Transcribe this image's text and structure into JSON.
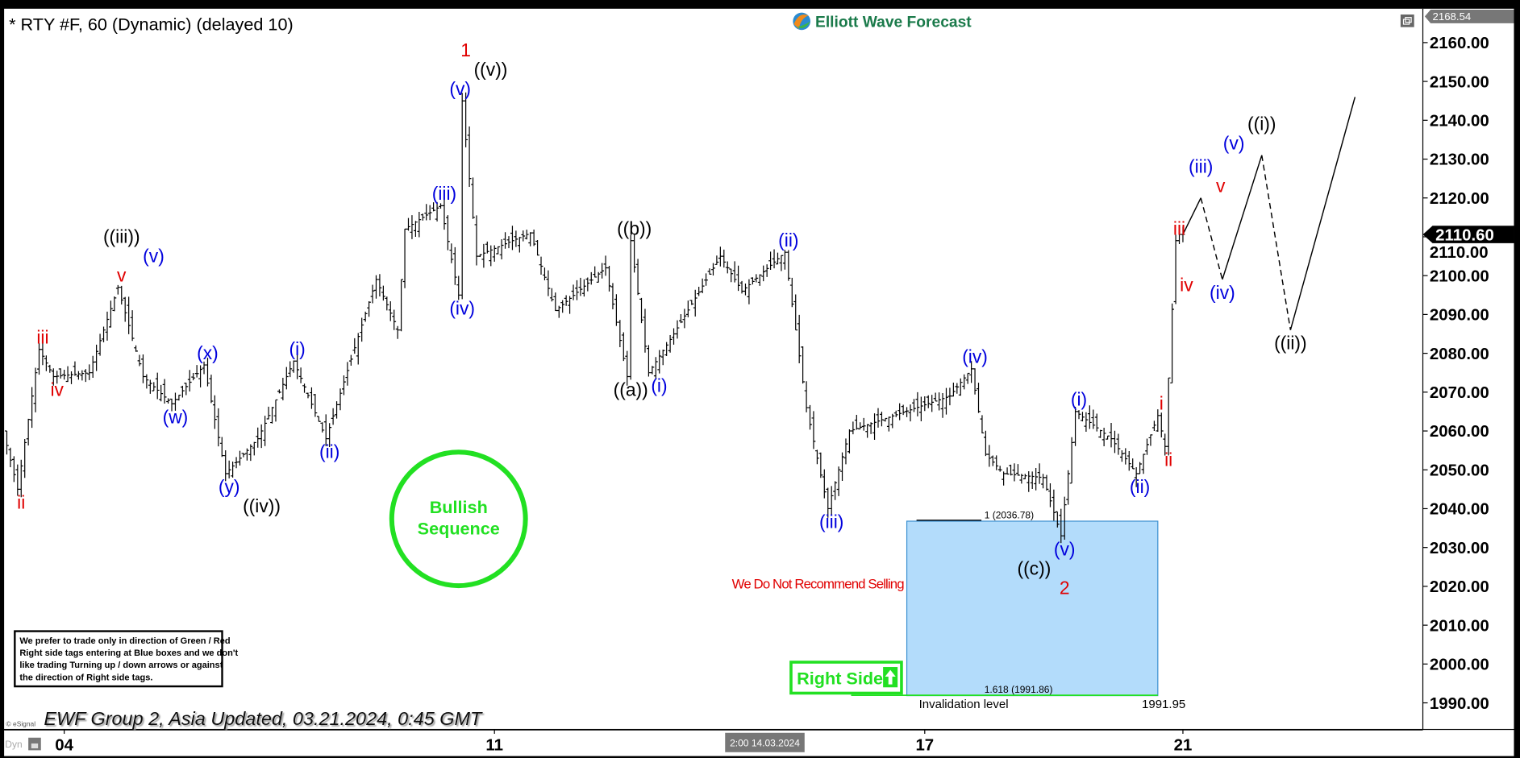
{
  "header": {
    "symbol_title": "* RTY #F, 60 (Dynamic) (delayed 10)",
    "logo_text": "Elliott Wave Forecast"
  },
  "footer": {
    "updated_text": "EWF Group 2, Asia Updated, 03.21.2024, 0:45 GMT",
    "copyright": "© eSignal",
    "dyn_label": "Dyn",
    "cursor_time": "2:00 14.03.2024"
  },
  "notice": {
    "lines": [
      "We prefer to trade only in direction of Green / Red",
      "Right side tags entering at Blue boxes and we don't",
      "like trading Turning up / down arrows or against",
      "the direction of Right side tags."
    ]
  },
  "annotations": {
    "bullish_line1": "Bullish",
    "bullish_line2": "Sequence",
    "no_selling": "We Do Not Recommend Selling",
    "right_side": "Right Side",
    "fib_1": "1 (2036.78)",
    "fib_1618": "1.618 (1991.86)",
    "invalidation_label": "Invalidation level",
    "invalidation_value": "1991.95"
  },
  "colors": {
    "red": "#e00000",
    "blue": "#0000dd",
    "black": "#000000",
    "green": "#22e022",
    "box_fill": "#b3dcfb",
    "box_stroke": "#3a8fd0"
  },
  "chart_data": {
    "type": "ohlc-bar",
    "interval": "60 min",
    "ylim": [
      1985,
      2168.54
    ],
    "yticks": [
      1990,
      2000,
      2010,
      2020,
      2030,
      2040,
      2050,
      2060,
      2070,
      2080,
      2090,
      2100,
      2110,
      2120,
      2130,
      2140,
      2150,
      2160
    ],
    "ytick_labels": [
      "1990.00",
      "2000.00",
      "2010.00",
      "2020.00",
      "2030.00",
      "2040.00",
      "2050.00",
      "2060.00",
      "2070.00",
      "2080.00",
      "2090.00",
      "2100.00",
      "2110.00",
      "2120.00",
      "2130.00",
      "2140.00",
      "2150.00",
      "2160.00"
    ],
    "axis_top_label": "2168.54",
    "last_price": 2110.6,
    "last_price_label": "2110.60",
    "xticks": [
      {
        "date": "03-04 00:00",
        "label": "04"
      },
      {
        "date": "03-11 00:00",
        "label": "11"
      },
      {
        "date": "03-17 00:00",
        "label": "17"
      },
      {
        "date": "03-21 00:00",
        "label": "21"
      }
    ],
    "price_path": [
      [
        "03-01 08:00",
        2060
      ],
      [
        "03-01 12:00",
        2045
      ],
      [
        "03-01 18:00",
        2081
      ],
      [
        "03-01 22:00",
        2074
      ],
      [
        "03-04 08:00",
        2075
      ],
      [
        "03-04 16:00",
        2097
      ],
      [
        "03-04 23:00",
        2074
      ],
      [
        "03-05 07:00",
        2067
      ],
      [
        "03-05 16:00",
        2077
      ],
      [
        "03-05 22:00",
        2049
      ],
      [
        "03-06 07:00",
        2058
      ],
      [
        "03-06 17:00",
        2078
      ],
      [
        "03-07 02:00",
        2058
      ],
      [
        "03-07 16:00",
        2099
      ],
      [
        "03-07 22:00",
        2086
      ],
      [
        "03-08 00:00",
        2112
      ],
      [
        "03-08 10:00",
        2118
      ],
      [
        "03-08 15:00",
        2095
      ],
      [
        "03-08 16:00",
        2145
      ],
      [
        "03-08 20:00",
        2105
      ],
      [
        "03-11 11:00",
        2111
      ],
      [
        "03-11 18:00",
        2091
      ],
      [
        "03-12 08:00",
        2102
      ],
      [
        "03-12 14:00",
        2074
      ],
      [
        "03-12 15:00",
        2109
      ],
      [
        "03-12 20:00",
        2075
      ],
      [
        "03-13 03:00",
        2085
      ],
      [
        "03-13 16:00",
        2105
      ],
      [
        "03-13 22:00",
        2096
      ],
      [
        "03-14 10:00",
        2106
      ],
      [
        "03-14 16:00",
        2066
      ],
      [
        "03-14 22:00",
        2040
      ],
      [
        "03-15 04:00",
        2060
      ],
      [
        "03-18 08:00",
        2069
      ],
      [
        "03-18 14:00",
        2076
      ],
      [
        "03-18 18:00",
        2054
      ],
      [
        "03-18 23:00",
        2049
      ],
      [
        "03-19 10:00",
        2048
      ],
      [
        "03-19 15:00",
        2033
      ],
      [
        "03-19 19:00",
        2065
      ],
      [
        "03-20 05:00",
        2058
      ],
      [
        "03-20 12:00",
        2049
      ],
      [
        "03-20 18:00",
        2064
      ],
      [
        "03-20 20:00",
        2056
      ],
      [
        "03-20 23:00",
        2109
      ],
      [
        "03-21 00:00",
        2110.6
      ]
    ],
    "projection": [
      {
        "from": [
          "03-21 00:00",
          2110.6
        ],
        "to": [
          "03-21 05:00",
          2120
        ],
        "style": "solid"
      },
      {
        "from": [
          "03-21 05:00",
          2120
        ],
        "to": [
          "03-21 11:00",
          2099
        ],
        "style": "dashed"
      },
      {
        "from": [
          "03-21 11:00",
          2099
        ],
        "to": [
          "03-21 22:00",
          2131
        ],
        "style": "solid"
      },
      {
        "from": [
          "03-21 22:00",
          2131
        ],
        "to": [
          "03-22 06:00",
          2086
        ],
        "style": "dashed"
      },
      {
        "from": [
          "03-22 06:00",
          2086
        ],
        "to": [
          "03-25 00:00",
          2146
        ],
        "style": "solid"
      }
    ],
    "blue_box": {
      "from": "03-15 19:00",
      "to": "03-20 17:00",
      "top": 2036.78,
      "bottom": 1991.86
    },
    "invalidation_level": 1991.95,
    "wave_labels": [
      {
        "at": "03-01 12:00",
        "price": 2045,
        "pos": "below",
        "lines": [
          [
            "ii",
            "red"
          ]
        ]
      },
      {
        "at": "03-01 18:00",
        "price": 2081,
        "pos": "above",
        "lines": [
          [
            "iii",
            "red"
          ]
        ]
      },
      {
        "at": "03-01 22:00",
        "price": 2074,
        "pos": "below",
        "lines": [
          [
            "iv",
            "red"
          ]
        ]
      },
      {
        "at": "03-04 16:00",
        "price": 2097,
        "pos": "above",
        "lines": [
          [
            "((iii))",
            "black"
          ],
          [
            "(v)",
            "blue"
          ],
          [
            "v",
            "red"
          ]
        ]
      },
      {
        "at": "03-05 07:00",
        "price": 2067,
        "pos": "below",
        "lines": [
          [
            "(w)",
            "blue"
          ]
        ]
      },
      {
        "at": "03-05 16:00",
        "price": 2077,
        "pos": "above",
        "lines": [
          [
            "(x)",
            "blue"
          ]
        ]
      },
      {
        "at": "03-05 22:00",
        "price": 2049,
        "pos": "below",
        "lines": [
          [
            "(y)",
            "blue"
          ],
          [
            "((iv))",
            "black"
          ]
        ]
      },
      {
        "at": "03-06 17:00",
        "price": 2078,
        "pos": "above",
        "lines": [
          [
            "(i)",
            "blue"
          ]
        ]
      },
      {
        "at": "03-07 02:00",
        "price": 2058,
        "pos": "below",
        "lines": [
          [
            "(ii)",
            "blue"
          ]
        ]
      },
      {
        "at": "03-08 10:00",
        "price": 2118,
        "pos": "above",
        "lines": [
          [
            "(iii)",
            "blue"
          ]
        ]
      },
      {
        "at": "03-08 15:00",
        "price": 2095,
        "pos": "below",
        "lines": [
          [
            "(iv)",
            "blue"
          ]
        ]
      },
      {
        "at": "03-08 16:00",
        "price": 2145,
        "pos": "above",
        "lines": [
          [
            "1",
            "red"
          ],
          [
            "((v))",
            "black"
          ],
          [
            "(v)",
            "blue"
          ]
        ]
      },
      {
        "at": "03-12 14:00",
        "price": 2074,
        "pos": "below",
        "lines": [
          [
            "((a))",
            "black"
          ]
        ]
      },
      {
        "at": "03-12 15:00",
        "price": 2109,
        "pos": "above",
        "lines": [
          [
            "((b))",
            "black"
          ]
        ]
      },
      {
        "at": "03-12 20:00",
        "price": 2075,
        "pos": "below",
        "lines": [
          [
            "(i)",
            "blue"
          ]
        ]
      },
      {
        "at": "03-14 10:00",
        "price": 2106,
        "pos": "above",
        "lines": [
          [
            "(ii)",
            "blue"
          ]
        ]
      },
      {
        "at": "03-14 22:00",
        "price": 2040,
        "pos": "below",
        "lines": [
          [
            "(iii)",
            "blue"
          ]
        ]
      },
      {
        "at": "03-18 14:00",
        "price": 2076,
        "pos": "above",
        "lines": [
          [
            "(iv)",
            "blue"
          ]
        ]
      },
      {
        "at": "03-19 15:00",
        "price": 2033,
        "pos": "below",
        "lines": [
          [
            "(v)",
            "blue"
          ],
          [
            "((c))",
            "black"
          ],
          [
            "2",
            "red"
          ]
        ]
      },
      {
        "at": "03-19 19:00",
        "price": 2065,
        "pos": "above",
        "lines": [
          [
            "(i)",
            "blue"
          ]
        ]
      },
      {
        "at": "03-20 12:00",
        "price": 2049,
        "pos": "below",
        "lines": [
          [
            "(ii)",
            "blue"
          ]
        ]
      },
      {
        "at": "03-20 18:00",
        "price": 2064,
        "pos": "above",
        "lines": [
          [
            "i",
            "red"
          ]
        ]
      },
      {
        "at": "03-20 20:00",
        "price": 2056,
        "pos": "below",
        "lines": [
          [
            "ii",
            "red"
          ]
        ]
      },
      {
        "at": "03-20 23:00",
        "price": 2109,
        "pos": "above",
        "lines": [
          [
            "iii",
            "red"
          ]
        ]
      },
      {
        "at": "03-21 01:00",
        "price": 2101,
        "pos": "below",
        "lines": [
          [
            "iv",
            "red"
          ]
        ]
      },
      {
        "at": "03-21 05:00",
        "price": 2120,
        "pos": "above",
        "lines": [
          [
            "(iii)",
            "blue"
          ],
          [
            "v",
            "red"
          ]
        ]
      },
      {
        "at": "03-21 11:00",
        "price": 2099,
        "pos": "below",
        "lines": [
          [
            "(iv)",
            "blue"
          ]
        ]
      },
      {
        "at": "03-21 22:00",
        "price": 2131,
        "pos": "above",
        "lines": [
          [
            "((i))",
            "black"
          ],
          [
            "(v)",
            "blue"
          ]
        ]
      },
      {
        "at": "03-22 06:00",
        "price": 2086,
        "pos": "below",
        "lines": [
          [
            "((ii))",
            "black"
          ]
        ]
      }
    ]
  }
}
